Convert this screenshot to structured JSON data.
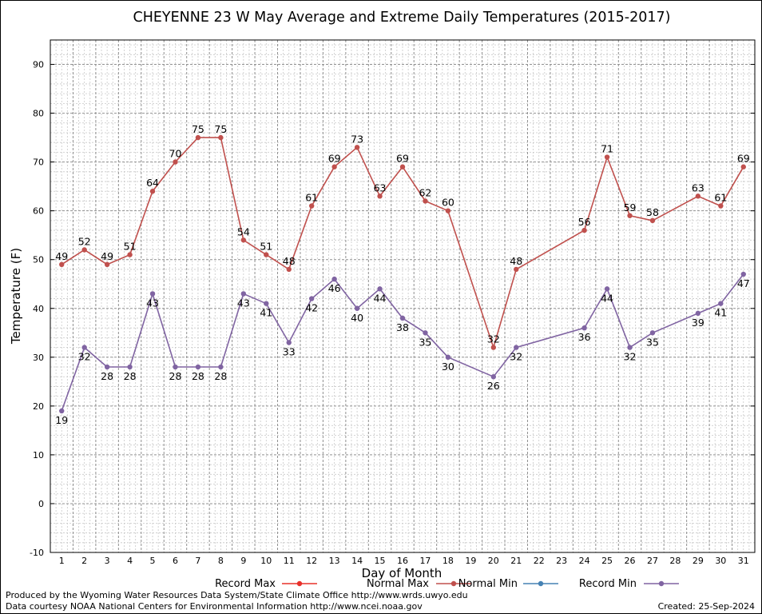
{
  "chart_data": {
    "type": "line",
    "title": "CHEYENNE 23 W May Average and Extreme Daily Temperatures (2015-2017)",
    "xlabel": "Day of Month",
    "ylabel": "Temperature (F)",
    "xlim": [
      0.5,
      31.5
    ],
    "ylim": [
      -10,
      95
    ],
    "yticks": [
      -10,
      0,
      10,
      20,
      30,
      40,
      50,
      60,
      70,
      80,
      90
    ],
    "xticks": [
      1,
      2,
      3,
      4,
      5,
      6,
      7,
      8,
      9,
      10,
      11,
      12,
      13,
      14,
      15,
      16,
      17,
      18,
      19,
      20,
      21,
      22,
      23,
      24,
      25,
      26,
      27,
      28,
      29,
      30,
      31
    ],
    "grid": true,
    "legend_position": "bottom",
    "series": [
      {
        "name": "Record Max",
        "color": "#e8302a",
        "x": [],
        "values": []
      },
      {
        "name": "Normal Max",
        "color": "#c0504d",
        "x": [
          1,
          2,
          3,
          4,
          5,
          6,
          7,
          8,
          9,
          10,
          11,
          12,
          13,
          14,
          15,
          16,
          17,
          18,
          20,
          21,
          24,
          25,
          26,
          27,
          29,
          30,
          31
        ],
        "values": [
          49,
          52,
          49,
          51,
          64,
          70,
          75,
          75,
          54,
          51,
          48,
          61,
          69,
          73,
          63,
          69,
          62,
          60,
          32,
          48,
          56,
          71,
          59,
          58,
          63,
          61,
          69
        ]
      },
      {
        "name": "Normal Min",
        "color": "#4682b4",
        "x": [],
        "values": []
      },
      {
        "name": "Record Min",
        "color": "#8064a2",
        "x": [
          1,
          2,
          3,
          4,
          5,
          6,
          7,
          8,
          9,
          10,
          11,
          12,
          13,
          14,
          15,
          16,
          17,
          18,
          20,
          21,
          24,
          25,
          26,
          27,
          29,
          30,
          31
        ],
        "values": [
          19,
          32,
          28,
          28,
          43,
          28,
          28,
          28,
          43,
          41,
          33,
          42,
          46,
          40,
          44,
          38,
          35,
          30,
          26,
          32,
          36,
          44,
          32,
          35,
          39,
          41,
          47
        ]
      }
    ]
  },
  "footer": {
    "left_line1": "Produced by the Wyoming Water Resources Data System/State Climate Office http://www.wrds.uwyo.edu",
    "left_line2": "Data courtesy NOAA National Centers for Environmental Information http://www.ncei.noaa.gov",
    "created": "Created:  25-Sep-2024"
  }
}
